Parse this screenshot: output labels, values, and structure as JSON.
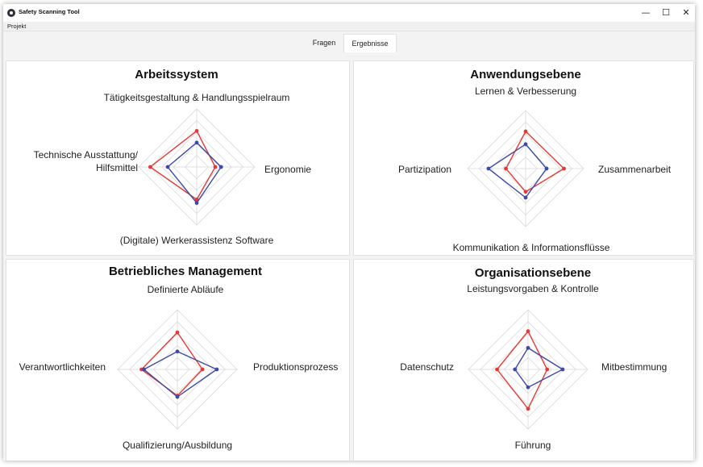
{
  "window": {
    "title": "Safety Scanning Tool",
    "minimize": "—",
    "maximize": "☐",
    "close": "✕"
  },
  "menu": {
    "projekt": "Projekt"
  },
  "tabs": [
    {
      "label": "Fragen",
      "active": false
    },
    {
      "label": "Ergebnisse",
      "active": true
    }
  ],
  "colors": {
    "series_1": "#e53935",
    "series_2": "#3f4aa6",
    "grid": "#d9d9d9"
  },
  "chart_data": [
    {
      "type": "radar",
      "title": "Arbeitssystem",
      "axes": [
        "Tätigkeitsgestaltung & Handlungsspielraum",
        "Ergonomie",
        "(Digitale) Werkerassistenz Software",
        "Technische Ausstattung/ Hilfsmittel"
      ],
      "axis_label_lines": [
        [
          "Tätigkeitsgestaltung & Handlungsspielraum"
        ],
        [
          "Ergonomie"
        ],
        [
          "(Digitale) Werkerassistenz Software"
        ],
        [
          "Technische Ausstattung/",
          "Hilfsmittel"
        ]
      ],
      "range": [
        0,
        5
      ],
      "grid_levels": 5,
      "series": [
        {
          "color": "#e53935",
          "values": [
            3.1,
            1.6,
            2.8,
            4.0
          ]
        },
        {
          "color": "#3f4aa6",
          "values": [
            2.1,
            2.1,
            3.1,
            2.5
          ]
        }
      ]
    },
    {
      "type": "radar",
      "title": "Anwendungsebene",
      "axes": [
        "Lernen & Verbesserung",
        "Zusammenarbeit",
        "Kommunikation & Informationsflüsse",
        "Partizipation"
      ],
      "axis_label_lines": [
        [
          "Lernen & Verbesserung"
        ],
        [
          "Zusammenarbeit"
        ],
        [
          "Kommunikation & Informationsflüsse"
        ],
        [
          "Partizipation"
        ]
      ],
      "range": [
        0,
        5
      ],
      "grid_levels": 5,
      "series": [
        {
          "color": "#e53935",
          "values": [
            3.2,
            3.3,
            2.0,
            1.7
          ]
        },
        {
          "color": "#3f4aa6",
          "values": [
            2.1,
            1.8,
            2.5,
            3.2
          ]
        }
      ]
    },
    {
      "type": "radar",
      "title": "Betriebliches Management",
      "axes": [
        "Definierte Abläufe",
        "Produktionsprozess",
        "Qualifizierung/Ausbildung",
        "Verantwortlichkeiten"
      ],
      "axis_label_lines": [
        [
          "Definierte Abläufe"
        ],
        [
          "Produktionsprozess"
        ],
        [
          "Qualifizierung/Ausbildung"
        ],
        [
          "Verantwortlichkeiten"
        ]
      ],
      "range": [
        0,
        5
      ],
      "grid_levels": 5,
      "series": [
        {
          "color": "#e53935",
          "values": [
            3.1,
            2.1,
            2.2,
            3.0
          ]
        },
        {
          "color": "#3f4aa6",
          "values": [
            1.5,
            3.3,
            2.3,
            2.8
          ]
        }
      ]
    },
    {
      "type": "radar",
      "title": "Organisationsebene",
      "axes": [
        "Leistungsvorgaben & Kontrolle",
        "Mitbestimmung",
        "Führung",
        "Datenschutz"
      ],
      "axis_label_lines": [
        [
          "Leistungsvorgaben & Kontrolle"
        ],
        [
          "Mitbestimmung"
        ],
        [
          "Führung"
        ],
        [
          "Datenschutz"
        ]
      ],
      "range": [
        0,
        5
      ],
      "grid_levels": 5,
      "series": [
        {
          "color": "#e53935",
          "values": [
            3.2,
            1.6,
            3.3,
            2.6
          ]
        },
        {
          "color": "#3f4aa6",
          "values": [
            1.8,
            2.9,
            1.5,
            1.1
          ]
        }
      ]
    }
  ]
}
